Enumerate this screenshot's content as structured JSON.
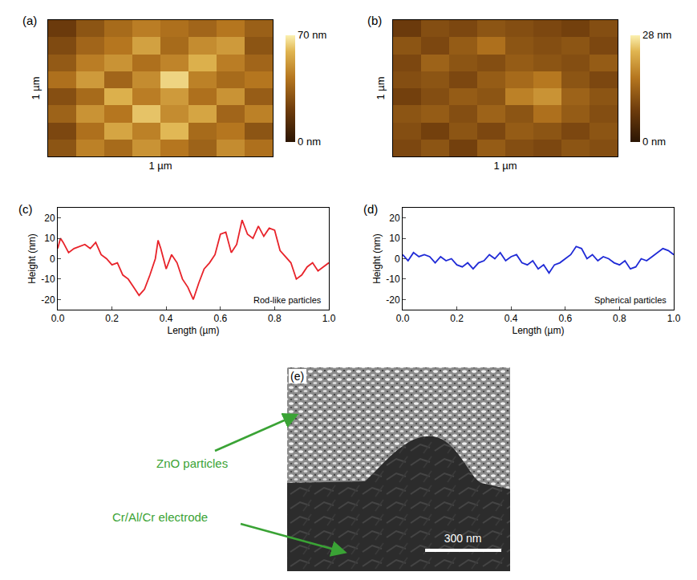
{
  "chart_data": [
    {
      "type": "heatmap",
      "label": "(a)",
      "xlabel": "1 µm",
      "ylabel": "1 µm",
      "tick_labels": false,
      "z": [
        [
          30,
          45,
          38,
          50,
          42,
          35,
          48,
          40
        ],
        [
          25,
          40,
          55,
          45,
          60,
          38,
          42,
          30
        ],
        [
          35,
          50,
          42,
          62,
          48,
          55,
          36,
          45
        ],
        [
          28,
          38,
          58,
          44,
          52,
          40,
          50,
          33
        ],
        [
          40,
          52,
          36,
          48,
          65,
          45,
          38,
          42
        ],
        [
          32,
          44,
          50,
          40,
          46,
          58,
          44,
          36
        ],
        [
          26,
          36,
          42,
          54,
          38,
          48,
          52,
          30
        ],
        [
          20,
          30,
          38,
          44,
          40,
          36,
          42,
          34
        ]
      ],
      "zlim": [
        0,
        70
      ],
      "zticks": [
        {
          "value": 0,
          "label": "0 nm"
        },
        {
          "value": 70,
          "label": "70 nm"
        }
      ]
    },
    {
      "type": "heatmap",
      "label": "(b)",
      "xlabel": "1 µm",
      "ylabel": "1 µm",
      "tick_labels": false,
      "z": [
        [
          10,
          12,
          9,
          13,
          11,
          10,
          12,
          11
        ],
        [
          11,
          9,
          12,
          10,
          13,
          12,
          10,
          12
        ],
        [
          12,
          13,
          11,
          14,
          12,
          16,
          13,
          11
        ],
        [
          9,
          11,
          13,
          12,
          18,
          20,
          14,
          12
        ],
        [
          11,
          12,
          10,
          13,
          15,
          17,
          12,
          10
        ],
        [
          10,
          14,
          12,
          11,
          13,
          12,
          11,
          13
        ],
        [
          12,
          10,
          13,
          16,
          12,
          11,
          12,
          10
        ],
        [
          8,
          11,
          10,
          12,
          11,
          10,
          9,
          11
        ]
      ],
      "zlim": [
        0,
        28
      ],
      "zticks": [
        {
          "value": 0,
          "label": "0 nm"
        },
        {
          "value": 28,
          "label": "28 nm"
        }
      ]
    },
    {
      "type": "line",
      "label": "(c)",
      "xlabel": "Length (µm)",
      "ylabel": "Height (nm)",
      "annotation": "Rod-like particles",
      "color": "#e8232a",
      "grid": false,
      "x": [
        0,
        0.01,
        0.02,
        0.04,
        0.06,
        0.08,
        0.1,
        0.12,
        0.14,
        0.16,
        0.18,
        0.2,
        0.22,
        0.24,
        0.26,
        0.28,
        0.3,
        0.32,
        0.34,
        0.36,
        0.37,
        0.38,
        0.4,
        0.42,
        0.44,
        0.46,
        0.48,
        0.5,
        0.52,
        0.54,
        0.56,
        0.58,
        0.6,
        0.62,
        0.64,
        0.66,
        0.68,
        0.7,
        0.72,
        0.74,
        0.76,
        0.78,
        0.8,
        0.82,
        0.84,
        0.86,
        0.88,
        0.9,
        0.92,
        0.94,
        0.96,
        0.98,
        1.0
      ],
      "values": [
        5,
        10,
        8,
        3,
        5,
        6,
        7,
        5,
        8,
        2,
        0,
        -3,
        -2,
        -8,
        -10,
        -14,
        -18,
        -15,
        -8,
        0,
        9,
        5,
        -5,
        2,
        -2,
        -10,
        -14,
        -20,
        -12,
        -5,
        -2,
        2,
        12,
        13,
        3,
        7,
        19,
        12,
        10,
        16,
        11,
        15,
        14,
        4,
        1,
        -2,
        -10,
        -8,
        -4,
        -2,
        -6,
        -4,
        -2
      ],
      "xlim": [
        0,
        1
      ],
      "xticks": [
        {
          "value": 0,
          "label": "0.0"
        },
        0.2,
        0.4,
        0.6,
        0.8,
        {
          "value": 1,
          "label": "1.0"
        }
      ],
      "ylim": [
        -25,
        25
      ],
      "yticks": [
        -20,
        -10,
        0,
        10,
        20
      ]
    },
    {
      "type": "line",
      "label": "(d)",
      "xlabel": "Length (µm)",
      "ylabel": "Height (nm)",
      "annotation": "Spherical particles",
      "color": "#1f2ad6",
      "grid": false,
      "x": [
        0,
        0.02,
        0.04,
        0.06,
        0.08,
        0.1,
        0.12,
        0.14,
        0.16,
        0.18,
        0.2,
        0.22,
        0.24,
        0.26,
        0.28,
        0.3,
        0.32,
        0.34,
        0.36,
        0.38,
        0.4,
        0.42,
        0.44,
        0.46,
        0.48,
        0.5,
        0.52,
        0.54,
        0.56,
        0.58,
        0.6,
        0.62,
        0.64,
        0.66,
        0.68,
        0.7,
        0.72,
        0.74,
        0.76,
        0.78,
        0.8,
        0.82,
        0.84,
        0.86,
        0.88,
        0.9,
        0.92,
        0.94,
        0.96,
        0.98,
        1.0
      ],
      "values": [
        2,
        -1,
        3,
        1,
        2,
        1,
        -2,
        1,
        -1,
        0,
        -3,
        -4,
        -2,
        -5,
        -2,
        -1,
        2,
        0,
        3,
        -1,
        1,
        2,
        -2,
        -3,
        -1,
        -5,
        -3,
        -7,
        -3,
        -2,
        0,
        2,
        6,
        5,
        0,
        2,
        -1,
        1,
        0,
        -2,
        -3,
        -1,
        -5,
        -4,
        0,
        -1,
        1,
        3,
        5,
        4,
        2
      ],
      "xlim": [
        0,
        1
      ],
      "xticks": [
        {
          "value": 0,
          "label": "0.0"
        },
        0.2,
        0.4,
        0.6,
        0.8,
        {
          "value": 1,
          "label": "1.0"
        }
      ],
      "ylim": [
        -25,
        25
      ],
      "yticks": [
        -20,
        -10,
        0,
        10,
        20
      ]
    }
  ],
  "image": {
    "label": "(e)",
    "pointers": [
      "ZnO particles",
      "Cr/Al/Cr electrode"
    ],
    "scale_bar": "300 nm"
  }
}
